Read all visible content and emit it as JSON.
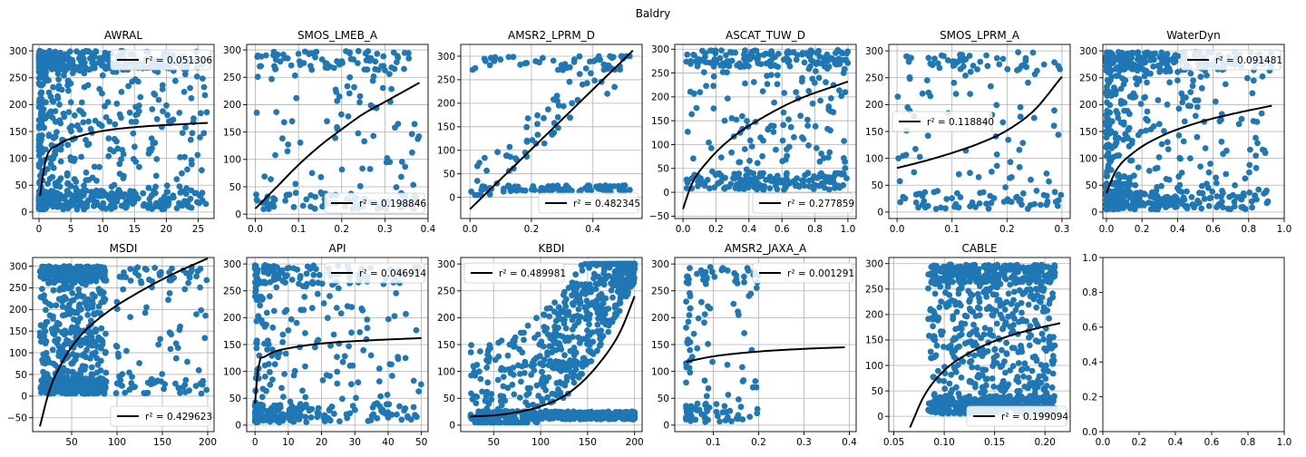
{
  "figure": {
    "suptitle": "Baldry"
  },
  "chart_data": [
    {
      "type": "scatter",
      "title": "AWRAL",
      "xlabel": "",
      "ylabel": "",
      "xlim": [
        -1,
        27.5
      ],
      "ylim": [
        -12,
        312
      ],
      "xticks": [
        0,
        5,
        10,
        15,
        20,
        25
      ],
      "xtick_labels": [
        "0",
        "5",
        "10",
        "15",
        "20",
        "25"
      ],
      "yticks": [
        0,
        50,
        100,
        150,
        200,
        250,
        300
      ],
      "ytick_labels": [
        "0",
        "50",
        "100",
        "150",
        "200",
        "250",
        "300"
      ],
      "grid": true,
      "legend_loc": "upper right",
      "legend_label": "r² = 0.051306",
      "fit": {
        "model": "power",
        "x": [
          0.15,
          1,
          3,
          6,
          10,
          15,
          20,
          26.5
        ],
        "y": [
          30,
          95,
          125,
          140,
          151,
          158,
          162,
          166
        ]
      },
      "scatter": {
        "dist": "dense_left",
        "count": 900,
        "x_range": [
          0,
          26.5
        ],
        "y_range": [
          5,
          300
        ],
        "seed": 11
      }
    },
    {
      "type": "scatter",
      "title": "SMOS_LMEB_A",
      "xlabel": "",
      "ylabel": "",
      "xlim": [
        -0.02,
        0.4
      ],
      "ylim": [
        -8,
        310
      ],
      "xticks": [
        0.0,
        0.1,
        0.2,
        0.3,
        0.4
      ],
      "xtick_labels": [
        "0.0",
        "0.1",
        "0.2",
        "0.3",
        "0.4"
      ],
      "yticks": [
        0,
        50,
        100,
        150,
        200,
        250,
        300
      ],
      "ytick_labels": [
        "0",
        "50",
        "100",
        "150",
        "200",
        "250",
        "300"
      ],
      "grid": true,
      "legend_loc": "lower right",
      "legend_label": "r² = 0.198846",
      "fit": {
        "model": "power",
        "x": [
          0,
          0.05,
          0.1,
          0.15,
          0.2,
          0.25,
          0.3,
          0.38
        ],
        "y": [
          10,
          50,
          90,
          125,
          155,
          183,
          205,
          240
        ]
      },
      "scatter": {
        "dist": "uniform",
        "count": 220,
        "x_range": [
          0,
          0.38
        ],
        "y_range": [
          5,
          298
        ],
        "seed": 22
      }
    },
    {
      "type": "scatter",
      "title": "AMSR2_LPRM_D",
      "xlabel": "",
      "ylabel": "",
      "xlim": [
        -0.03,
        0.56
      ],
      "ylim": [
        -45,
        325
      ],
      "xticks": [
        0.0,
        0.2,
        0.4
      ],
      "xtick_labels": [
        "0.0",
        "0.2",
        "0.4"
      ],
      "yticks": [
        0,
        50,
        100,
        150,
        200,
        250,
        300
      ],
      "ytick_labels": [
        "0",
        "50",
        "100",
        "150",
        "200",
        "250",
        "300"
      ],
      "grid": true,
      "legend_loc": "lower right",
      "legend_label": "r² = 0.482345",
      "fit": {
        "model": "linear",
        "x": [
          0.0,
          0.53
        ],
        "y": [
          -25,
          312
        ]
      },
      "scatter": {
        "dist": "cluster_bottom",
        "count": 200,
        "x_range": [
          0,
          0.52
        ],
        "y_range": [
          5,
          300
        ],
        "seed": 33
      }
    },
    {
      "type": "scatter",
      "title": "ASCAT_TUW_D",
      "xlabel": "",
      "ylabel": "",
      "xlim": [
        -0.05,
        1.05
      ],
      "ylim": [
        -55,
        310
      ],
      "xticks": [
        0.0,
        0.2,
        0.4,
        0.6,
        0.8,
        1.0
      ],
      "xtick_labels": [
        "0.0",
        "0.2",
        "0.4",
        "0.6",
        "0.8",
        "1.0"
      ],
      "yticks": [
        -50,
        0,
        50,
        100,
        150,
        200,
        250,
        300
      ],
      "ytick_labels": [
        "−50",
        "0",
        "50",
        "100",
        "150",
        "200",
        "250",
        "300"
      ],
      "grid": true,
      "legend_loc": "lower right",
      "legend_label": "r² = 0.277859",
      "fit": {
        "model": "power",
        "x": [
          0.0,
          0.05,
          0.15,
          0.3,
          0.5,
          0.7,
          1.0
        ],
        "y": [
          -35,
          15,
          65,
          115,
          160,
          195,
          232
        ]
      },
      "scatter": {
        "dist": "uniform",
        "count": 420,
        "x_range": [
          0.02,
          1.0
        ],
        "y_range": [
          5,
          298
        ],
        "seed": 44
      }
    },
    {
      "type": "scatter",
      "title": "SMOS_LPRM_A",
      "xlabel": "",
      "ylabel": "",
      "xlim": [
        -0.015,
        0.315
      ],
      "ylim": [
        -12,
        312
      ],
      "xticks": [
        0.0,
        0.1,
        0.2,
        0.3
      ],
      "xtick_labels": [
        "0.0",
        "0.1",
        "0.2",
        "0.3"
      ],
      "yticks": [
        0,
        50,
        100,
        150,
        200,
        250,
        300
      ],
      "ytick_labels": [
        "0",
        "50",
        "100",
        "150",
        "200",
        "250",
        "300"
      ],
      "grid": true,
      "legend_loc": "center left",
      "legend_label": "r² = 0.118840",
      "fit": {
        "model": "exp",
        "x": [
          0.0,
          0.05,
          0.1,
          0.15,
          0.2,
          0.25,
          0.3
        ],
        "y": [
          82,
          95,
          110,
          128,
          152,
          190,
          252
        ]
      },
      "scatter": {
        "dist": "uniform",
        "count": 170,
        "x_range": [
          0,
          0.3
        ],
        "y_range": [
          5,
          298
        ],
        "seed": 55
      }
    },
    {
      "type": "scatter",
      "title": "WaterDyn",
      "xlabel": "",
      "ylabel": "",
      "xlim": [
        -0.02,
        1.0
      ],
      "ylim": [
        -12,
        312
      ],
      "xticks": [
        0.0,
        0.2,
        0.4,
        0.6,
        0.8,
        1.0
      ],
      "xtick_labels": [
        "0.0",
        "0.2",
        "0.4",
        "0.6",
        "0.8",
        "1.0"
      ],
      "yticks": [
        0,
        50,
        100,
        150,
        200,
        250,
        300
      ],
      "ytick_labels": [
        "0",
        "50",
        "100",
        "150",
        "200",
        "250",
        "300"
      ],
      "grid": true,
      "legend_loc": "upper right",
      "legend_label": "r² = 0.091481",
      "fit": {
        "model": "power",
        "x": [
          0.0,
          0.05,
          0.15,
          0.3,
          0.5,
          0.7,
          0.93
        ],
        "y": [
          35,
          75,
          110,
          140,
          165,
          182,
          198
        ]
      },
      "scatter": {
        "dist": "dense_left",
        "count": 700,
        "x_range": [
          0,
          0.93
        ],
        "y_range": [
          5,
          298
        ],
        "seed": 66
      }
    },
    {
      "type": "scatter",
      "title": "MSDI",
      "xlabel": "",
      "ylabel": "",
      "xlim": [
        7,
        207
      ],
      "ylim": [
        -82,
        320
      ],
      "xticks": [
        50,
        100,
        150,
        200
      ],
      "xtick_labels": [
        "50",
        "100",
        "150",
        "200"
      ],
      "yticks": [
        -50,
        0,
        50,
        100,
        150,
        200,
        250,
        300
      ],
      "ytick_labels": [
        "−50",
        "0",
        "50",
        "100",
        "150",
        "200",
        "250",
        "300"
      ],
      "grid": true,
      "legend_loc": "lower right",
      "legend_label": "r² = 0.429623",
      "fit": {
        "model": "log",
        "x": [
          15,
          25,
          40,
          60,
          90,
          120,
          160,
          200
        ],
        "y": [
          -70,
          10,
          80,
          140,
          195,
          235,
          280,
          318
        ]
      },
      "scatter": {
        "dist": "block_left",
        "count": 900,
        "x_range": [
          15,
          200
        ],
        "y_range": [
          5,
          300
        ],
        "seed": 77
      }
    },
    {
      "type": "scatter",
      "title": "API",
      "xlabel": "",
      "ylabel": "",
      "xlim": [
        -2.5,
        52
      ],
      "ylim": [
        -12,
        312
      ],
      "xticks": [
        0,
        10,
        20,
        30,
        40,
        50
      ],
      "xtick_labels": [
        "0",
        "10",
        "20",
        "30",
        "40",
        "50"
      ],
      "yticks": [
        0,
        50,
        100,
        150,
        200,
        250,
        300
      ],
      "ytick_labels": [
        "0",
        "50",
        "100",
        "150",
        "200",
        "250",
        "300"
      ],
      "grid": true,
      "legend_loc": "upper right",
      "legend_label": "r² = 0.046914",
      "fit": {
        "model": "power",
        "x": [
          0.0,
          1,
          3,
          6,
          10,
          20,
          35,
          50
        ],
        "y": [
          40,
          110,
          127,
          137,
          143,
          152,
          158,
          162
        ]
      },
      "scatter": {
        "dist": "dense_left",
        "count": 420,
        "x_range": [
          0,
          50
        ],
        "y_range": [
          5,
          298
        ],
        "seed": 88
      }
    },
    {
      "type": "scatter",
      "title": "KBDI",
      "xlabel": "",
      "ylabel": "",
      "xlim": [
        15,
        208
      ],
      "ylim": [
        -12,
        312
      ],
      "xticks": [
        50,
        100,
        150,
        200
      ],
      "xtick_labels": [
        "50",
        "100",
        "150",
        "200"
      ],
      "yticks": [
        0,
        50,
        100,
        150,
        200,
        250,
        300
      ],
      "ytick_labels": [
        "0",
        "50",
        "100",
        "150",
        "200",
        "250",
        "300"
      ],
      "grid": true,
      "legend_loc": "upper left",
      "legend_label": "r² = 0.489981",
      "fit": {
        "model": "exp",
        "x": [
          25,
          60,
          100,
          130,
          160,
          185,
          200
        ],
        "y": [
          16,
          20,
          35,
          60,
          110,
          175,
          240
        ]
      },
      "scatter": {
        "dist": "dense_right",
        "count": 1200,
        "x_range": [
          25,
          200
        ],
        "y_range": [
          5,
          300
        ],
        "seed": 99
      }
    },
    {
      "type": "scatter",
      "title": "AMSR2_JAXA_A",
      "xlabel": "",
      "ylabel": "",
      "xlim": [
        0.015,
        0.415
      ],
      "ylim": [
        -12,
        312
      ],
      "xticks": [
        0.1,
        0.2,
        0.3,
        0.4
      ],
      "xtick_labels": [
        "0.1",
        "0.2",
        "0.3",
        "0.4"
      ],
      "yticks": [
        0,
        50,
        100,
        150,
        200,
        250,
        300
      ],
      "ytick_labels": [
        "0",
        "50",
        "100",
        "150",
        "200",
        "250",
        "300"
      ],
      "grid": true,
      "legend_loc": "upper right",
      "legend_label": "r² = 0.001291",
      "fit": {
        "model": "power",
        "x": [
          0.04,
          0.1,
          0.2,
          0.3,
          0.39
        ],
        "y": [
          118,
          128,
          137,
          142,
          145
        ]
      },
      "scatter": {
        "dist": "dense_left",
        "count": 150,
        "x_range": [
          0.04,
          0.2
        ],
        "y_range": [
          5,
          298
        ],
        "seed": 111
      }
    },
    {
      "type": "scatter",
      "title": "CABLE",
      "xlabel": "",
      "ylabel": "",
      "xlim": [
        0.045,
        0.225
      ],
      "ylim": [
        -30,
        312
      ],
      "xticks": [
        0.05,
        0.1,
        0.15,
        0.2
      ],
      "xtick_labels": [
        "0.05",
        "0.10",
        "0.15",
        "0.20"
      ],
      "yticks": [
        0,
        50,
        100,
        150,
        200,
        250,
        300
      ],
      "ytick_labels": [
        "0",
        "50",
        "100",
        "150",
        "200",
        "250",
        "300"
      ],
      "grid": true,
      "legend_loc": "lower right",
      "legend_label": "r² = 0.199094",
      "fit": {
        "model": "log",
        "x": [
          0.066,
          0.08,
          0.1,
          0.13,
          0.16,
          0.19,
          0.215
        ],
        "y": [
          -22,
          40,
          90,
          130,
          155,
          172,
          183
        ]
      },
      "scatter": {
        "dist": "block_mid",
        "count": 1000,
        "x_range": [
          0.07,
          0.21
        ],
        "y_range": [
          5,
          298
        ],
        "seed": 122
      }
    },
    {
      "type": "empty",
      "title": "",
      "xlabel": "",
      "ylabel": "",
      "xlim": [
        0,
        1
      ],
      "ylim": [
        0,
        1
      ],
      "xticks": [
        0.0,
        0.2,
        0.4,
        0.6,
        0.8,
        1.0
      ],
      "xtick_labels": [
        "0.0",
        "0.2",
        "0.4",
        "0.6",
        "0.8",
        "1.0"
      ],
      "yticks": [
        0.0,
        0.2,
        0.4,
        0.6,
        0.8,
        1.0
      ],
      "ytick_labels": [
        "0.0",
        "0.2",
        "0.4",
        "0.6",
        "0.8",
        "1.0"
      ],
      "grid": false,
      "legend_label": ""
    }
  ],
  "colors": {
    "scatter": "#1f77b4",
    "fit": "#000000",
    "grid": "#b0b0b0",
    "axis": "#000000"
  }
}
